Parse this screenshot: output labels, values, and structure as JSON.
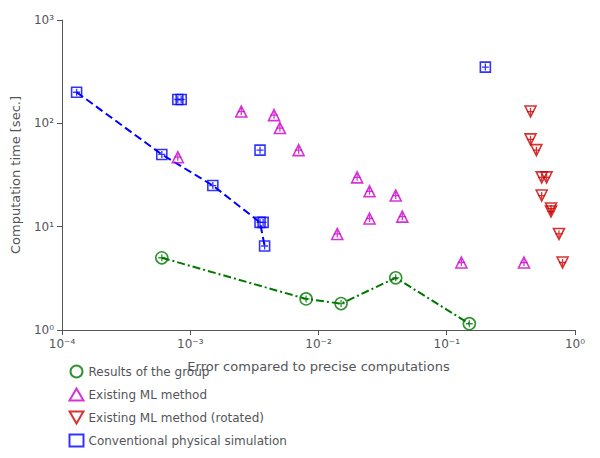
{
  "chart_data": {
    "type": "scatter",
    "xlabel": "Error compared to precise computations",
    "ylabel": "Computation time [sec.]",
    "log": true,
    "grid": false,
    "legend": "lower left",
    "xlim": [
      0.0001,
      1.0
    ],
    "ylim": [
      1.0,
      1000.0
    ],
    "xticks": [
      {
        "value": 0.0001,
        "label": "10⁻⁴"
      },
      {
        "value": 0.001,
        "label": "10⁻³"
      },
      {
        "value": 0.01,
        "label": "10⁻²"
      },
      {
        "value": 0.1,
        "label": "10⁻¹"
      },
      {
        "value": 1.0,
        "label": "10⁰"
      }
    ],
    "yticks": [
      {
        "value": 1.0,
        "label": "10⁰"
      },
      {
        "value": 10.0,
        "label": "10¹"
      },
      {
        "value": 100.0,
        "label": "10²"
      },
      {
        "value": 1000.0,
        "label": "10³"
      }
    ],
    "series": [
      {
        "type": "line",
        "line_style": "dashed",
        "color": "blue",
        "x": [
          0.00013,
          0.0006,
          0.0015,
          0.0035,
          0.0038
        ],
        "values": [
          200.0,
          50.0,
          25.0,
          11.0,
          6.5
        ]
      },
      {
        "type": "line",
        "line_style": "dashdot",
        "color": "#007700",
        "x": [
          0.0006,
          0.008,
          0.015,
          0.04,
          0.15
        ],
        "values": [
          5.0,
          2.0,
          1.8,
          3.2,
          1.15
        ]
      },
      {
        "type": "scatter",
        "name": "Results of the group",
        "marker": "circle_plus",
        "color": "#007700",
        "x": [
          0.0006,
          0.008,
          0.015,
          0.04,
          0.15
        ],
        "values": [
          5.0,
          2.0,
          1.8,
          3.2,
          1.15
        ]
      },
      {
        "type": "scatter",
        "name": "Existing ML method",
        "marker": "triangle_up_plus",
        "color": "#cc00cc",
        "x": [
          0.0008,
          0.0025,
          0.0045,
          0.005,
          0.007,
          0.014,
          0.02,
          0.025,
          0.025,
          0.04,
          0.045,
          0.13,
          0.4
        ],
        "values": [
          47.0,
          130.0,
          120.0,
          90.0,
          55.0,
          8.5,
          30.0,
          22.0,
          12.0,
          20.0,
          12.5,
          4.5,
          4.5
        ]
      },
      {
        "type": "scatter",
        "name": "Existing ML method (rotated)",
        "marker": "triangle_down_plus",
        "color": "#cc0000",
        "x": [
          0.45,
          0.45,
          0.5,
          0.55,
          0.55,
          0.6,
          0.65,
          0.65,
          0.75,
          0.8
        ],
        "values": [
          130.0,
          70.0,
          55.0,
          30.0,
          20.0,
          30.0,
          15.0,
          14.0,
          8.5,
          4.5
        ]
      },
      {
        "type": "scatter",
        "name": "Conventional physical simulation",
        "marker": "square_plus",
        "color": "blue",
        "x": [
          0.00013,
          0.0008,
          0.00085,
          0.0006,
          0.0015,
          0.0035,
          0.0035,
          0.0037,
          0.0038,
          0.2
        ],
        "values": [
          200.0,
          170.0,
          170.0,
          50.0,
          25.0,
          11.0,
          55.0,
          11.0,
          6.5,
          350.0
        ]
      }
    ]
  }
}
